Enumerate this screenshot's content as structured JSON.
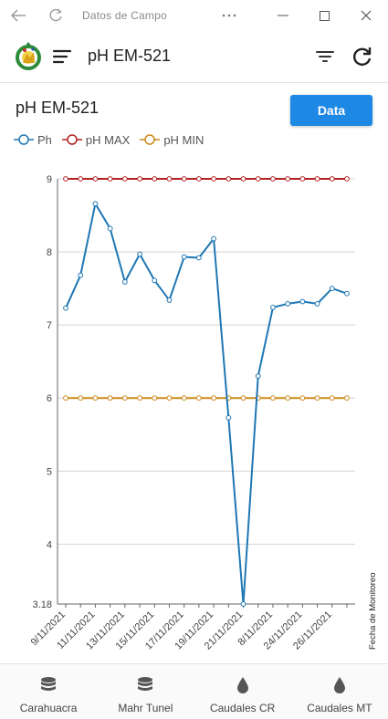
{
  "window": {
    "title": "Datos de Campo",
    "back_icon": "back-arrow-icon",
    "reload_icon": "reload-icon",
    "more_icon": "more-horizontal-icon",
    "maximize_icon": "maximize-icon",
    "close_icon": "close-icon"
  },
  "header": {
    "title": "pH EM-521",
    "logo_icon": "app-logo",
    "menu_icon": "hamburger-menu-icon",
    "filter_icon": "filter-icon",
    "refresh_icon": "refresh-icon"
  },
  "main": {
    "heading": "pH EM-521",
    "data_button_label": "Data"
  },
  "colors": {
    "ph": "#1f77b4",
    "ph_max": "#b22222",
    "ph_min": "#cc8a1a",
    "accent": "#1e88e5"
  },
  "chart_data": {
    "type": "line",
    "title": "",
    "xlabel": "Fecha de Monitoreo",
    "ylabel": "",
    "ylim": [
      3.18,
      9
    ],
    "y_ticks": [
      9,
      8,
      7,
      6,
      5,
      4,
      3.18
    ],
    "x_tick_labels": [
      "9/11/2021",
      "11/11/2021",
      "13/11/2021",
      "15/11/2021",
      "17/11/2021",
      "19/11/2021",
      "21/11/2021",
      "8/11/2021",
      "24/11/2021",
      "26/11/2021"
    ],
    "grid": true,
    "legend_placement": "top-left",
    "series": [
      {
        "name": "Ph",
        "values": [
          7.23,
          7.68,
          8.66,
          8.32,
          7.59,
          7.97,
          7.61,
          7.34,
          7.93,
          7.92,
          8.18,
          5.73,
          3.18,
          6.3,
          7.24,
          7.29,
          7.32,
          7.29,
          7.5,
          7.43
        ]
      },
      {
        "name": "pH MAX",
        "values": [
          9,
          9,
          9,
          9,
          9,
          9,
          9,
          9,
          9,
          9,
          9,
          9,
          9,
          9,
          9,
          9,
          9,
          9,
          9,
          9
        ]
      },
      {
        "name": "pH MIN",
        "values": [
          6,
          6,
          6,
          6,
          6,
          6,
          6,
          6,
          6,
          6,
          6,
          6,
          6,
          6,
          6,
          6,
          6,
          6,
          6,
          6
        ]
      }
    ]
  },
  "bottom_nav": {
    "items": [
      {
        "label": "Carahuacra",
        "icon": "database-icon"
      },
      {
        "label": "Mahr Tunel",
        "icon": "database-icon"
      },
      {
        "label": "Caudales CR",
        "icon": "water-drop-icon"
      },
      {
        "label": "Caudales MT",
        "icon": "water-drop-icon"
      }
    ]
  }
}
